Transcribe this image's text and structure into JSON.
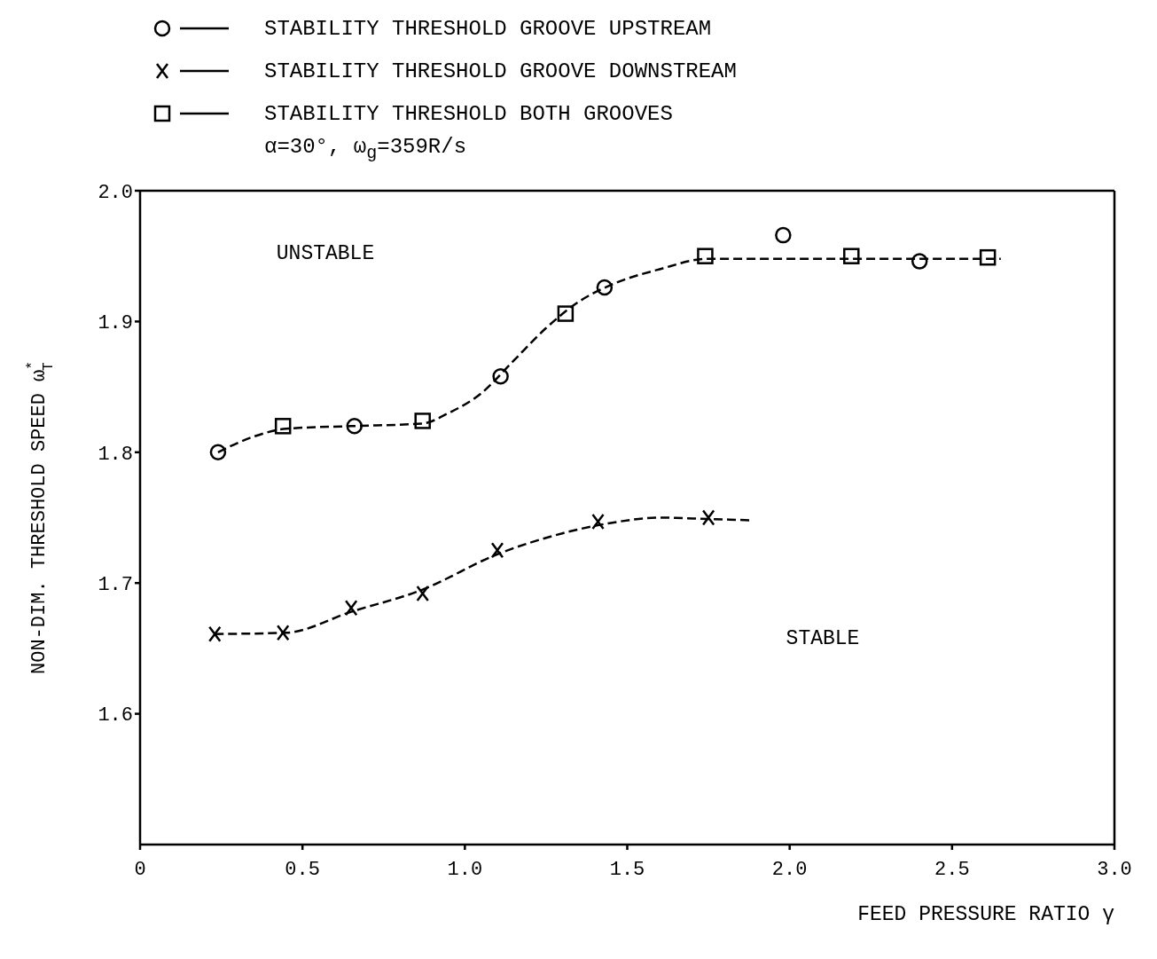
{
  "chart_data": {
    "type": "scatter",
    "subtitle": "α=30°, ω$_{g}$=359R/s",
    "xlabel": "FEED PRESSURE RATIO γ",
    "ylabel": "NON-DIM. THRESHOLD SPEED ω$^{*}$$_{T}$",
    "xlim": [
      0,
      3.0
    ],
    "xticks": [
      {
        "value": 0,
        "label": "0"
      },
      {
        "value": 0.5,
        "label": "0.5"
      },
      {
        "value": 1,
        "label": "1.0"
      },
      {
        "value": 1.5,
        "label": "1.5"
      },
      {
        "value": 2,
        "label": "2.0"
      },
      {
        "value": 2.5,
        "label": "2.5"
      },
      {
        "value": 3,
        "label": "3.0"
      }
    ],
    "ylim": [
      1.5,
      2.0
    ],
    "yticks": [
      {
        "value": 1.6,
        "label": "1.6"
      },
      {
        "value": 1.7,
        "label": "1.7"
      },
      {
        "value": 1.8,
        "label": "1.8"
      },
      {
        "value": 1.9,
        "label": "1.9"
      },
      {
        "value": 2,
        "label": "2.0"
      }
    ],
    "legend": "top left",
    "annotations": [
      "UNSTABLE",
      "STABLE"
    ],
    "series": [
      {
        "name": "STABILITY THRESHOLD GROOVE UPSTREAM",
        "marker": "circle",
        "color": "#000000",
        "x": [
          0.24,
          0.66,
          1.11,
          1.43,
          1.98,
          2.4
        ],
        "values": [
          1.8,
          1.82,
          1.858,
          1.926,
          1.966,
          1.946
        ]
      },
      {
        "name": "STABILITY THRESHOLD GROOVE DOWNSTREAM",
        "marker": "cross",
        "color": "#000000",
        "x": [
          0.23,
          0.44,
          0.65,
          0.87,
          1.1,
          1.41,
          1.75
        ],
        "values": [
          1.661,
          1.662,
          1.681,
          1.692,
          1.725,
          1.747,
          1.75
        ]
      },
      {
        "name": "STABILITY THRESHOLD BOTH GROOVES",
        "marker": "square",
        "color": "#000000",
        "x": [
          0.44,
          0.87,
          1.31,
          1.74,
          2.19,
          2.61
        ],
        "values": [
          1.82,
          1.824,
          1.906,
          1.95,
          1.95,
          1.949
        ]
      },
      {
        "type": "line",
        "marker": "none",
        "line_style": "dashed",
        "color": "#000000",
        "x": [
          0.24,
          0.35,
          0.45,
          0.65,
          0.87,
          0.95,
          1.05,
          1.15,
          1.25,
          1.35,
          1.45,
          1.6,
          1.75,
          2.0,
          2.65
        ],
        "values": [
          1.8,
          1.812,
          1.818,
          1.82,
          1.822,
          1.83,
          1.845,
          1.87,
          1.895,
          1.915,
          1.928,
          1.94,
          1.948,
          1.948,
          1.948
        ]
      },
      {
        "type": "line",
        "marker": "none",
        "line_style": "dashed",
        "color": "#000000",
        "x": [
          0.23,
          0.45,
          0.65,
          0.87,
          1.1,
          1.3,
          1.45,
          1.6,
          1.75,
          1.88
        ],
        "values": [
          1.661,
          1.662,
          1.678,
          1.695,
          1.722,
          1.738,
          1.746,
          1.75,
          1.749,
          1.748
        ]
      }
    ]
  }
}
